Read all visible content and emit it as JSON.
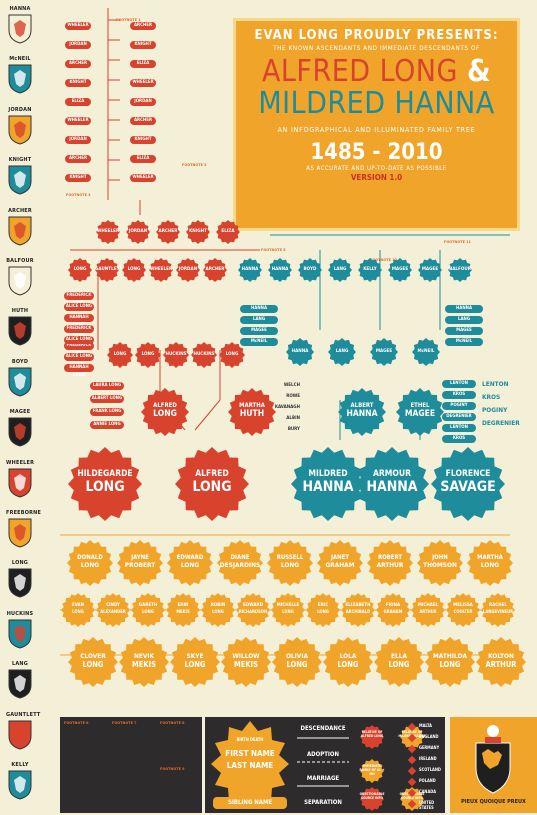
{
  "colors": {
    "red": "#d8432e",
    "teal": "#1e8c9a",
    "orange": "#f0a52a",
    "cream": "#f4f0d8",
    "dark": "#2d2b2c"
  },
  "title": {
    "line1": "EVAN LONG PROUDLY PRESENTS:",
    "line2": "THE KNOWN ASCENDANTS AND IMMEDIATE DESCENDANTS OF",
    "name1": "ALFRED LONG",
    "amp": "&",
    "name2": "MILDRED HANNA",
    "subtitle": "AN INFOGRAPHICAL AND ILLUMINATED FAMILY TREE",
    "years": "1485 - 2010",
    "accuracy": "AS ACCURATE AND UP-TO-DATE AS POSSIBLE",
    "version": "VERSION 1.0"
  },
  "crests": [
    {
      "name": "HANNA",
      "icon": "antlers-icon"
    },
    {
      "name": "McNEIL",
      "icon": "castle-icon"
    },
    {
      "name": "JORDAN",
      "icon": "chevron-shield-icon"
    },
    {
      "name": "KNIGHT",
      "icon": "bend-shield-icon"
    },
    {
      "name": "ARCHER",
      "icon": "arrows-shield-icon"
    },
    {
      "name": "BALFOUR",
      "icon": "otter-shield-icon"
    },
    {
      "name": "HUTH",
      "icon": "heart-shield-icon"
    },
    {
      "name": "BOYD",
      "icon": "checky-shield-icon"
    },
    {
      "name": "MAGEE",
      "icon": "tree-shield-icon"
    },
    {
      "name": "WHEELER",
      "icon": "wheels-shield-icon"
    },
    {
      "name": "FREEBORNE",
      "icon": "stripes-shield-icon"
    },
    {
      "name": "LONG",
      "icon": "lion-shield-icon"
    },
    {
      "name": "HUCKINS",
      "icon": "lozenge-shield-icon"
    },
    {
      "name": "LANG",
      "icon": "fess-shield-icon"
    },
    {
      "name": "GAUNTLETT",
      "icon": "checker-shield-icon"
    },
    {
      "name": "KELLY",
      "icon": "green-shield-icon"
    }
  ],
  "notes": {
    "n1": "FOOTNOTE 1",
    "n2": "FOOTNOTE 2",
    "n3": "FOOTNOTE 3",
    "n4": "FOOTNOTE 4",
    "n5": "FOOTNOTE 5",
    "n6": "FOOTNOTE 6",
    "n7": "FOOTNOTE 7",
    "n8": "FOOTNOTE 8",
    "n9": "FOOTNOTE 9",
    "n10": "FOOTNOTE 10",
    "n11": "FOOTNOTE 11"
  },
  "gen_top_left": [
    "WHEELER",
    "JORDAN",
    "ARCHER",
    "KNIGHT",
    "ELIZA"
  ],
  "gen2_left": [
    "LONG",
    "GAUNTLETT",
    "LONG",
    "WHEELER",
    "JORDAN",
    "ARCHER"
  ],
  "gen3_left": [
    "LONG",
    "LONG",
    "HUCKINS",
    "HUCKINS",
    "LONG"
  ],
  "gen2_right": [
    "HANNA",
    "HANNA",
    "BOYD",
    "LANG",
    "KELLY",
    "MAGEE",
    "MAGEE",
    "BALFOUR"
  ],
  "gen3_right": [
    "HANNA",
    "LANG",
    "MAGEE",
    "McNEIL"
  ],
  "left_side_names": [
    "FREDERICK LONG",
    "ALICE LONG",
    "HANNAH LONG"
  ],
  "left_kids": [
    "LAURA LONG",
    "ALBERT LONG",
    "FRANK LONG",
    "ANNIE LONG"
  ],
  "right_side_left": [
    "WELCH",
    "ROWE",
    "KAVANAGH",
    "ALBIN",
    "BURY"
  ],
  "right_side_right": [
    "LENTON",
    "KROS",
    "POGINY",
    "DEGRENIER"
  ],
  "gen4": [
    {
      "first": "ALFRED",
      "last": "LONG"
    },
    {
      "first": "MARTHA",
      "last": "HUTH"
    },
    {
      "first": "ALBERT",
      "last": "HANNA"
    },
    {
      "first": "ETHEL",
      "last": "MAGEE"
    }
  ],
  "gen5": [
    {
      "first": "HILDEGARDE",
      "last": "LONG",
      "color": "red"
    },
    {
      "first": "ALFRED",
      "last": "LONG",
      "color": "red"
    },
    {
      "first": "MILDRED",
      "last": "HANNA",
      "color": "teal"
    },
    {
      "first": "ARMOUR",
      "last": "HANNA",
      "color": "teal"
    },
    {
      "first": "FLORENCE",
      "last": "SAVAGE",
      "color": "teal"
    }
  ],
  "gen6": [
    {
      "first": "DONALD",
      "last": "LONG"
    },
    {
      "first": "JAYNE",
      "last": "PROBERT"
    },
    {
      "first": "EDWARD",
      "last": "LONG"
    },
    {
      "first": "DIANE",
      "last": "DESJARDINS"
    },
    {
      "first": "RUSSELL",
      "last": "LONG"
    },
    {
      "first": "JANET",
      "last": "GRAHAM"
    },
    {
      "first": "ROBERT",
      "last": "ARTHUR"
    },
    {
      "first": "JOHN",
      "last": "THOMSON"
    },
    {
      "first": "MARTHA",
      "last": "LONG"
    }
  ],
  "gen7": [
    {
      "first": "EVAN",
      "last": "LONG"
    },
    {
      "first": "CINDY",
      "last": "ALEXANDER"
    },
    {
      "first": "GARETH",
      "last": "LONG"
    },
    {
      "first": "ERIN",
      "last": "MEKIS"
    },
    {
      "first": "ROBIN",
      "last": "LONG"
    },
    {
      "first": "EDWARD",
      "last": "RICHARDSON"
    },
    {
      "first": "MICHELLE",
      "last": "LONG"
    },
    {
      "first": "ERIC",
      "last": "LONG"
    },
    {
      "first": "ELIZABETH",
      "last": "ARCHIBALD"
    },
    {
      "first": "FIONA",
      "last": "GRAHAM"
    },
    {
      "first": "MICHAEL",
      "last": "ARTHUR"
    },
    {
      "first": "MELISSA",
      "last": "COULTER"
    },
    {
      "first": "RACHEL",
      "last": "LANGEVINEUR"
    }
  ],
  "gen8": [
    {
      "first": "CLOVER",
      "last": "LONG"
    },
    {
      "first": "NEVIK",
      "last": "MEKIS"
    },
    {
      "first": "SKYE",
      "last": "LONG"
    },
    {
      "first": "WILLOW",
      "last": "MEKIS"
    },
    {
      "first": "OLIVIA",
      "last": "LONG"
    },
    {
      "first": "LOLA",
      "last": "LONG"
    },
    {
      "first": "ELLA",
      "last": "LONG"
    },
    {
      "first": "MATHILDA",
      "last": "LONG"
    },
    {
      "first": "KOLTON",
      "last": "ARTHUR"
    }
  ],
  "legend": {
    "first_name": "FIRST NAME",
    "last_name": "LAST NAME",
    "sibling": "SIBLING NAME",
    "descendance": "DESCENDANCE",
    "adoption": "ADOPTION",
    "marriage": "MARRIAGE",
    "separation": "SEPARATION",
    "flags": [
      "MALTA",
      "ENGLAND",
      "GERMANY",
      "IRELAND",
      "SCOTLAND",
      "POLAND",
      "CANADA",
      "UNITED STATES"
    ],
    "boxes": [
      "RELATIVE OF ALFRED LONG",
      "RELATIVE OF MILDRED HANNA",
      "IMMEDIATE FAMILY OF AL + MH",
      "QUESTIONABLE SOURCE INFO",
      "QUESTIONABLE SOURCE INFO"
    ],
    "motto": "PIEUX QUOIQUE PREUX",
    "birth_death": "BIRTH DEATH"
  }
}
